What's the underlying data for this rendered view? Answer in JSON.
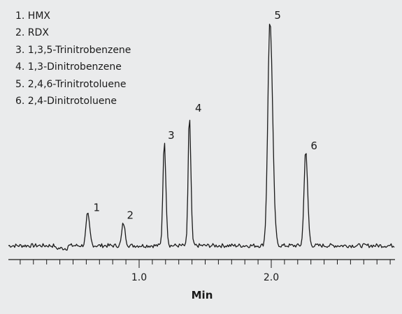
{
  "chart_data": {
    "type": "line",
    "title": "",
    "xlabel": "Min",
    "ylabel": "",
    "xlim": [
      0,
      3.0
    ],
    "ylim": [
      -0.02,
      1.0
    ],
    "grid": false,
    "x_ticks": [
      {
        "value": 1.0,
        "label": "1.0"
      },
      {
        "value": 2.0,
        "label": "2.0"
      }
    ],
    "minor_tick_step": 0.1,
    "legend": {
      "placement": "top-left",
      "entries": [
        "1. HMX",
        "2. RDX",
        "3. 1,3,5-Trinitrobenzene",
        "4. 1,3-Dinitrobenzene",
        "5. 2,4,6-Trinitrotoluene",
        "6. 2,4-Dinitrotoluene"
      ]
    },
    "peaks": [
      {
        "label": "1",
        "name": "HMX",
        "rt": 0.61,
        "height": 0.14
      },
      {
        "label": "2",
        "name": "RDX",
        "rt": 0.88,
        "height": 0.1
      },
      {
        "label": "3",
        "name": "1,3,5-Trinitrobenzene",
        "rt": 1.19,
        "height": 0.46
      },
      {
        "label": "4",
        "name": "1,3-Dinitrobenzene",
        "rt": 1.38,
        "height": 0.58
      },
      {
        "label": "5",
        "name": "2,4,6-Trinitrotoluene",
        "rt": 1.99,
        "height": 1.0
      },
      {
        "label": "6",
        "name": "2,4-Dinitrotoluene",
        "rt": 2.26,
        "height": 0.42
      }
    ],
    "line_color": "#1a1a1a"
  }
}
